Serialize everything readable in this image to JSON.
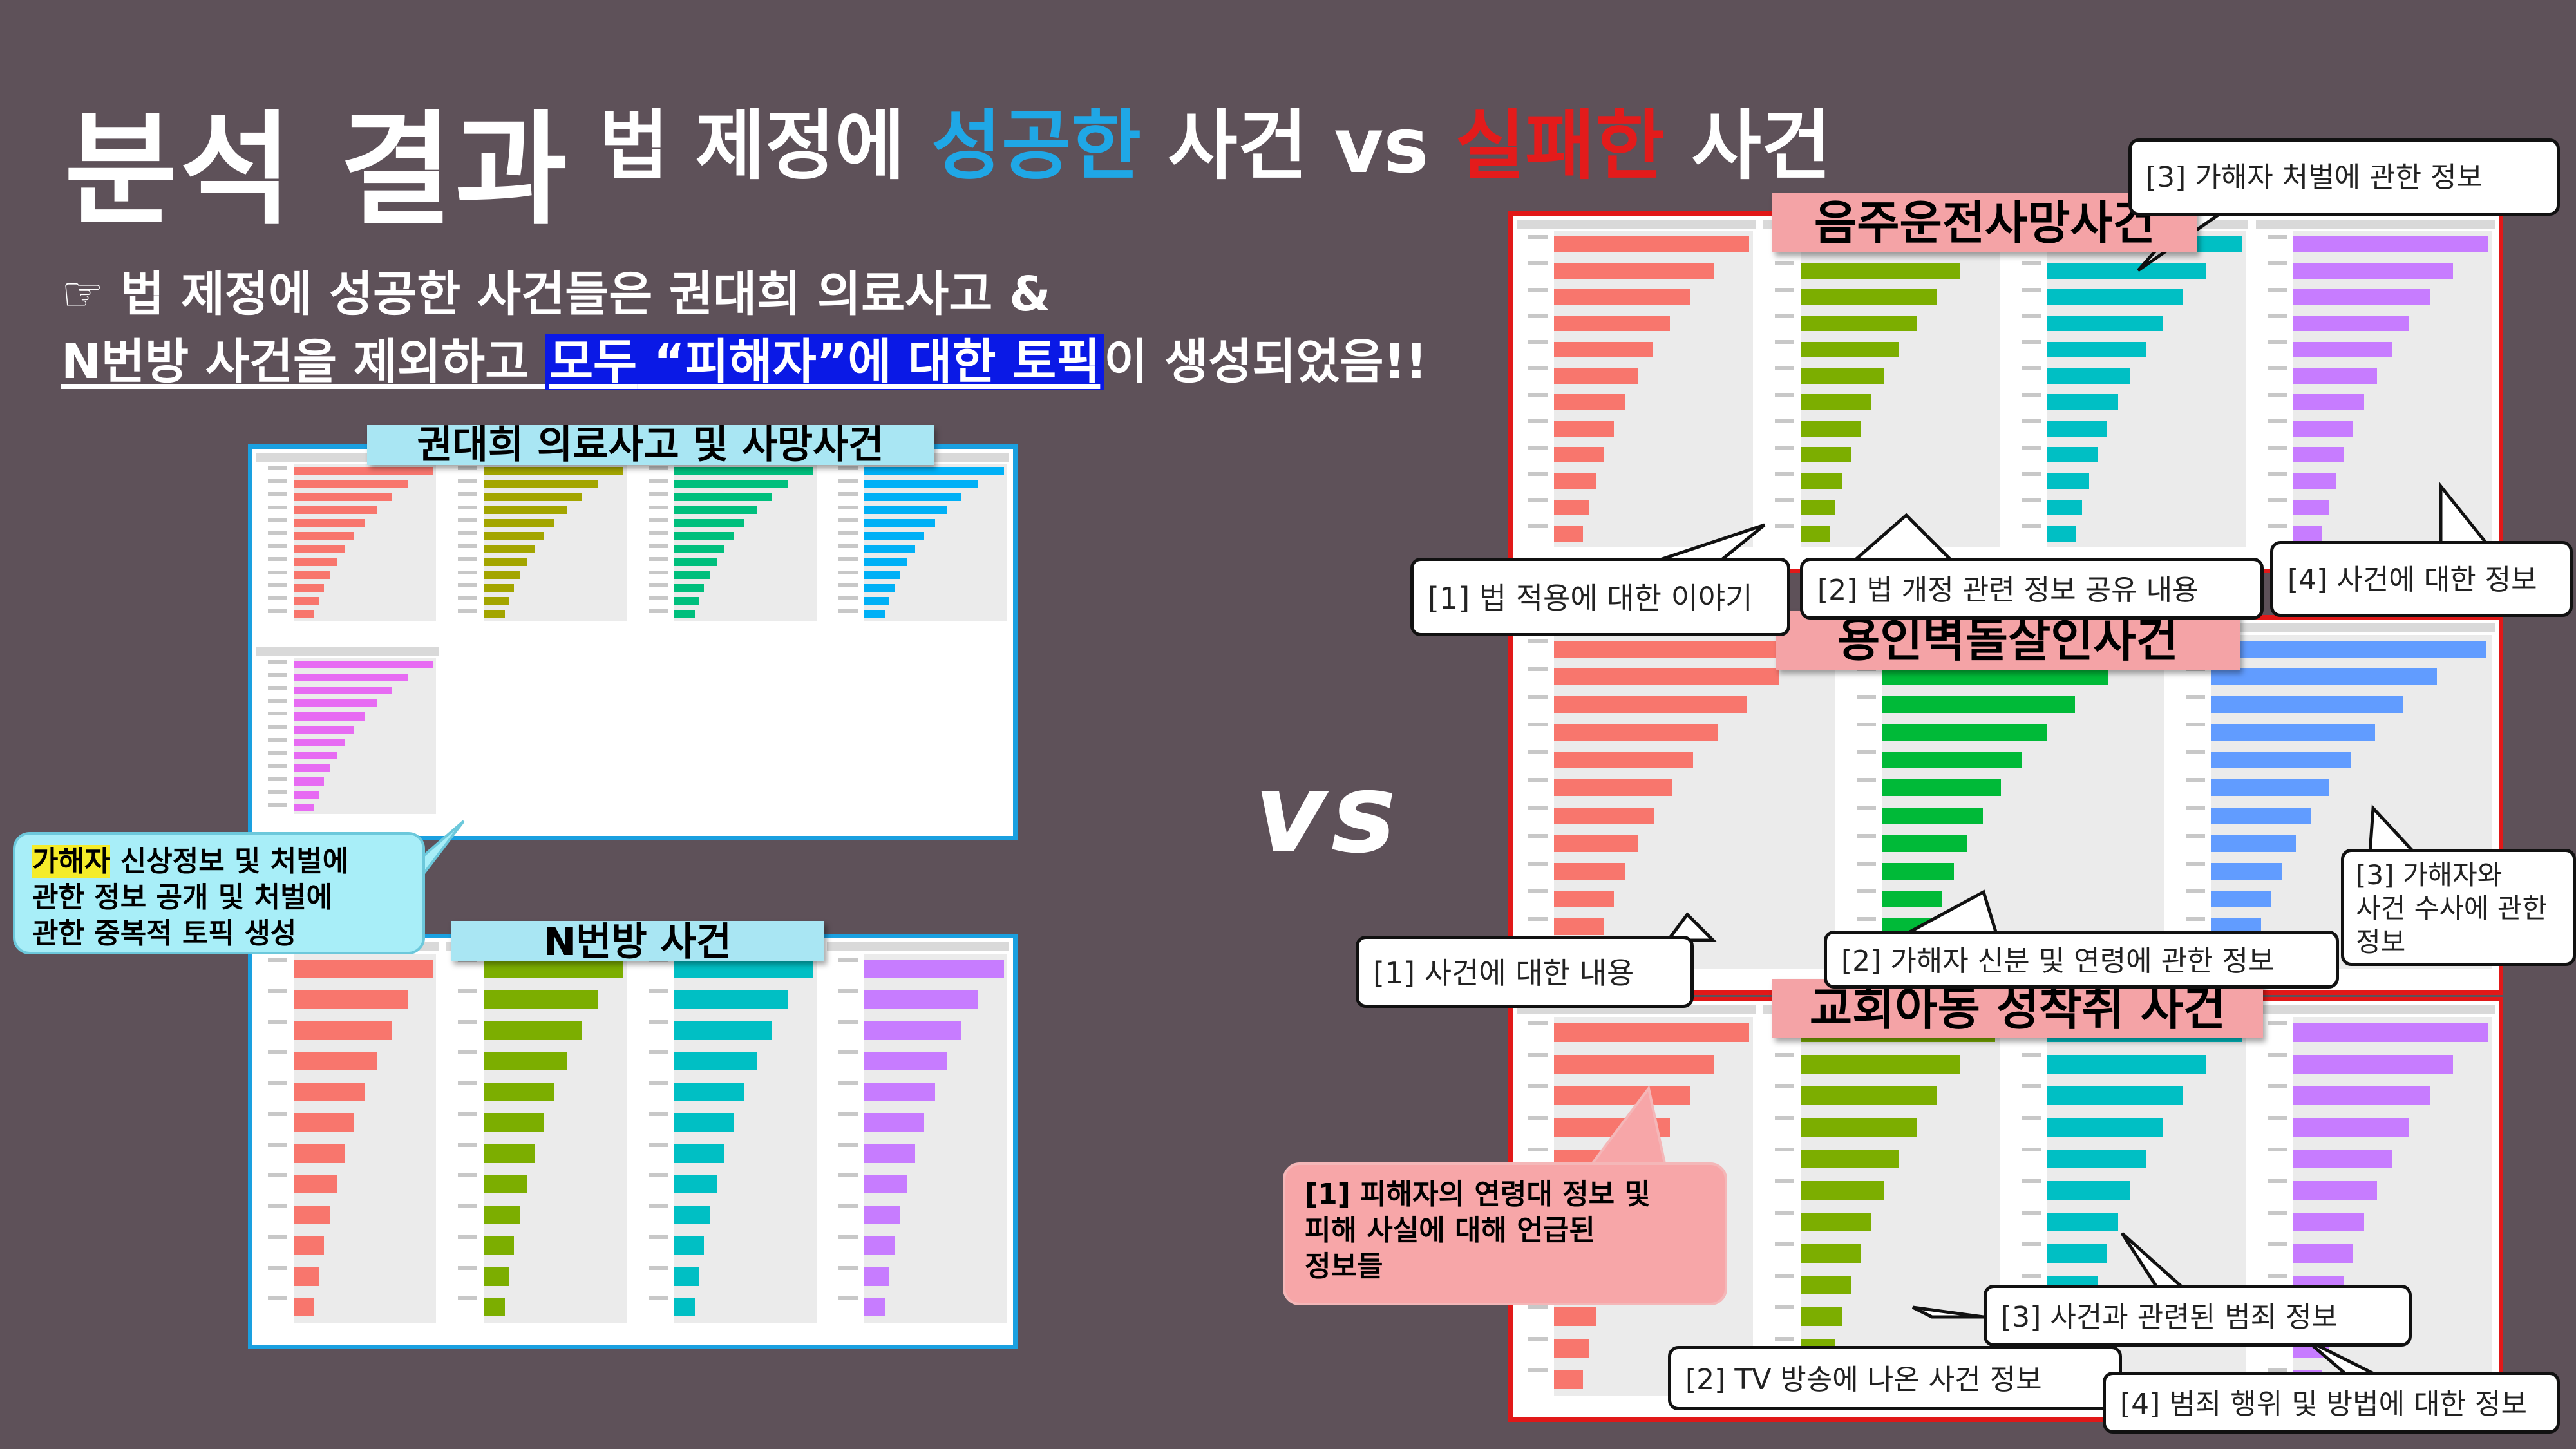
{
  "title": {
    "main": "분석 결과",
    "prefix": "법 제정에 ",
    "success": "성공한",
    "middle": " 사건 vs ",
    "fail": "실패한",
    "suffix": " 사건"
  },
  "colors": {
    "background": "#5e5159",
    "success": "#1fa7e6",
    "fail": "#e41b1b",
    "highlight_blue": "#0a19e6",
    "highlight_yellow": "#f5ec2a",
    "facet_red": "#f8766d",
    "facet_olive": "#a3a500",
    "facet_green": "#00bf7d",
    "facet_teal": "#00b0c0",
    "facet_blue": "#00b0f6",
    "facet_purple": "#e76bf3",
    "facet_violet": "#c77cff",
    "facet_lime": "#7cae00",
    "facet_cyan": "#00bfc4",
    "facet_cornflower": "#619cff"
  },
  "intro": {
    "icon": "pointing-hand-icon",
    "icon_glyph": "☞",
    "line1": "법 제정에 성공한 사건들은 권대희 의료사고 &",
    "line2_a": "N번방 사건을 제외하고 ",
    "line2_b": "모두",
    "line2_c": " “피해자”에 대한 토픽",
    "line2_d": "이 생성되었음!!"
  },
  "vs": "vs",
  "success_panels": [
    {
      "banner": "권대희 의료사고 및 사망사건"
    },
    {
      "banner": "N번방 사건"
    }
  ],
  "fail_panels": [
    {
      "banner": "음주운전사망사건"
    },
    {
      "banner": "용인벽돌살인사건"
    },
    {
      "banner": "교회아동 성착취 사건"
    }
  ],
  "callouts": {
    "success_note_highlight": "가해자",
    "success_note_line1": " 신상정보 및 처벌에",
    "success_note_line2": "관한 정보 공개 및 처벌에",
    "success_note_line3": "관한 중복적 토픽  생성",
    "drunk_1": "[1] 법 적용에 대한 이야기",
    "drunk_2": "[2] 법 개정 관련 정보 공유 내용",
    "drunk_3": "[3] 가해자 처벌에 관한 정보",
    "drunk_4": "[4] 사건에 대한 정보",
    "brick_1": "[1] 사건에 대한 내용",
    "brick_2": "[2] 가해자 신분 및 연령에 관한 정보",
    "brick_3_line1": "[3] 가해자와",
    "brick_3_line2": "사건 수사에 관한",
    "brick_3_line3": "정보",
    "church_1_line1": "[1] 피해자의 연령대 정보 및",
    "church_1_line2": "피해 사실에 대해 언급된",
    "church_1_line3": "정보들",
    "church_2": "[2] TV 방송에 나온 사건 정보",
    "church_3": "[3] 사건과 관련된 범죄 정보",
    "church_4": "[4] 범죄 행위 및 방법에 대한 정보"
  }
}
